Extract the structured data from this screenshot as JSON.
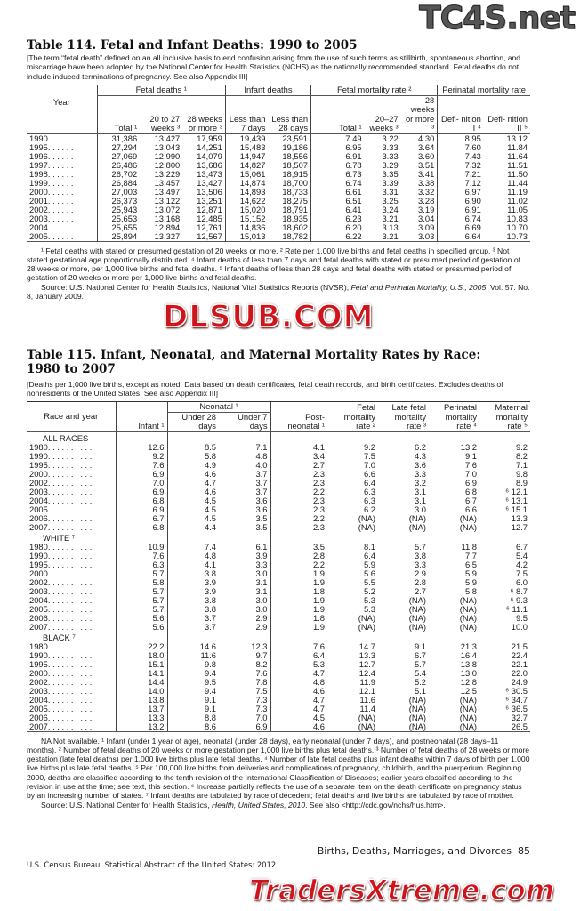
{
  "watermarks": {
    "top": "TC4S.net",
    "middle": "DLSUB.COM",
    "bottom": "TradersXtreme.com"
  },
  "t114": {
    "title": "Table 114. Fetal and Infant Deaths: 1990 to 2005",
    "note": "[The term “fetal death” defined on an all inclusive basis to end confusion arising from the use of such terms as stillbirth, spontaneous abortion, and miscarriage have been adopted by the National Center for Health Statistics (NCHS) as the nationally recommended standard. Fetal deaths do not include induced terminations of pregnancy. See also Appendix III]",
    "headers": {
      "year": "Year",
      "fetal_deaths": "Fetal deaths ¹",
      "infant_deaths": "Infant deaths",
      "fetal_rate": "Fetal mortality rate ²",
      "perinatal": "Perinatal mortality rate",
      "cols": [
        "Total ¹",
        "20 to 27 weeks ³",
        "28 weeks or more ³",
        "Less than 7 days",
        "Less than 28 days",
        "Total ¹",
        "20–27 weeks ³",
        "28 weeks or more ³",
        "Defi- nition I ⁴",
        "Defi- nition II ⁵"
      ]
    },
    "rows": [
      [
        "1990",
        "31,386",
        "13,427",
        "17,959",
        "19,439",
        "23,591",
        "7.49",
        "3.22",
        "4.30",
        "8.95",
        "13.12"
      ],
      [
        "1995",
        "27,294",
        "13,043",
        "14,251",
        "15,483",
        "19,186",
        "6.95",
        "3.33",
        "3.64",
        "7.60",
        "11.84"
      ],
      [
        "1996",
        "27,069",
        "12,990",
        "14,079",
        "14,947",
        "18,556",
        "6.91",
        "3.33",
        "3.60",
        "7.43",
        "11.64"
      ],
      [
        "1997",
        "26,486",
        "12,800",
        "13,686",
        "14,827",
        "18,507",
        "6.78",
        "3.29",
        "3.51",
        "7.32",
        "11.51"
      ],
      [
        "1998",
        "26,702",
        "13,229",
        "13,473",
        "15,061",
        "18,915",
        "6.73",
        "3.35",
        "3.41",
        "7.21",
        "11.50"
      ],
      [
        "1999",
        "26,884",
        "13,457",
        "13,427",
        "14,874",
        "18,700",
        "6.74",
        "3.39",
        "3.38",
        "7.12",
        "11.44"
      ],
      [
        "2000",
        "27,003",
        "13,497",
        "13,506",
        "14,893",
        "18,733",
        "6.61",
        "3.31",
        "3.32",
        "6.97",
        "11.19"
      ],
      [
        "2001",
        "26,373",
        "13,122",
        "13,251",
        "14,622",
        "18,275",
        "6.51",
        "3.25",
        "3.28",
        "6.90",
        "11.02"
      ],
      [
        "2002",
        "25,943",
        "13,072",
        "12,871",
        "15,020",
        "18,791",
        "6.41",
        "3.24",
        "3.19",
        "6.91",
        "11.05"
      ],
      [
        "2003",
        "25,653",
        "13,168",
        "12,485",
        "15,152",
        "18,935",
        "6.23",
        "3.21",
        "3.04",
        "6.74",
        "10.83"
      ],
      [
        "2004",
        "25,655",
        "12,894",
        "12,761",
        "14,836",
        "18,602",
        "6.20",
        "3.13",
        "3.09",
        "6.69",
        "10.70"
      ],
      [
        "2005",
        "25,894",
        "13,327",
        "12,567",
        "15,013",
        "18,782",
        "6.22",
        "3.21",
        "3.03",
        "6.64",
        "10.73"
      ]
    ],
    "footnotes": "¹ Fetal deaths with stated or presumed gestation of 20 weeks or more. ² Rate per 1,000 live births and fetal deaths in specified group. ³ Not stated gestational age proportionally distributed. ⁴ Infant deaths of less than 7 days and fetal deaths with stated or presumed period of gestation of 28 weeks or more, per 1,000 live births and fetal deaths. ⁵ Infant deaths of less than 28 days and fetal deaths with stated or presumed period of gestation of 20 weeks or more per 1,000 live births and fetal deaths.",
    "source_prefix": "Source: U.S. National Center for Health Statistics, National Vital Statistics Reports (NVSR), ",
    "source_italic": "Fetal and Perinatal Mortality, U.S., 2005",
    "source_suffix": ", Vol. 57. No. 8, January 2009."
  },
  "t115": {
    "title_line1": "Table 115. Infant, Neonatal, and Maternal Mortality Rates by Race:",
    "title_line2": "1980 to 2007",
    "note": "[Deaths per 1,000 live births, except as noted. Data based on death certificates, fetal death records, and birth certificates. Excludes deaths of nonresidents of the United States. See also Appendix III]",
    "headers": {
      "race_year": "Race and year",
      "neonatal": "Neonatal ¹",
      "cols": [
        "Infant ¹",
        "Under 28 days",
        "Under 7 days",
        "Post- neonatal ¹",
        "Fetal mortality rate ²",
        "Late fetal mortality rate ³",
        "Perinatal mortality rate ⁴",
        "Maternal mortality rate ⁵"
      ]
    },
    "groups": [
      {
        "label": "ALL RACES",
        "rows": [
          [
            "1980",
            "12.6",
            "8.5",
            "7.1",
            "4.1",
            "9.2",
            "6.2",
            "13.2",
            "9.2"
          ],
          [
            "1990",
            "9.2",
            "5.8",
            "4.8",
            "3.4",
            "7.5",
            "4.3",
            "9.1",
            "8.2"
          ],
          [
            "1995",
            "7.6",
            "4.9",
            "4.0",
            "2.7",
            "7.0",
            "3.6",
            "7.6",
            "7.1"
          ],
          [
            "2000",
            "6.9",
            "4.6",
            "3.7",
            "2.3",
            "6.6",
            "3.3",
            "7.0",
            "9.8"
          ],
          [
            "2002",
            "7.0",
            "4.7",
            "3.7",
            "2.3",
            "6.4",
            "3.2",
            "6.9",
            "8.9"
          ],
          [
            "2003",
            "6.9",
            "4.6",
            "3.7",
            "2.2",
            "6.3",
            "3.1",
            "6.8",
            "⁶ 12.1"
          ],
          [
            "2004",
            "6.8",
            "4.5",
            "3.6",
            "2.3",
            "6.3",
            "3.1",
            "6.7",
            "⁶ 13.1"
          ],
          [
            "2005",
            "6.9",
            "4.5",
            "3.6",
            "2.3",
            "6.2",
            "3.0",
            "6.6",
            "⁶ 15.1"
          ],
          [
            "2006",
            "6.7",
            "4.5",
            "3.5",
            "2.2",
            "(NA)",
            "(NA)",
            "(NA)",
            "13.3"
          ],
          [
            "2007",
            "6.8",
            "4.4",
            "3.5",
            "2.3",
            "(NA)",
            "(NA)",
            "(NA)",
            "12.7"
          ]
        ]
      },
      {
        "label": "WHITE ⁷",
        "rows": [
          [
            "1980",
            "10.9",
            "7.4",
            "6.1",
            "3.5",
            "8.1",
            "5.7",
            "11.8",
            "6.7"
          ],
          [
            "1990",
            "7.6",
            "4.8",
            "3.9",
            "2.8",
            "6.4",
            "3.8",
            "7.7",
            "5.4"
          ],
          [
            "1995",
            "6.3",
            "4.1",
            "3.3",
            "2.2",
            "5.9",
            "3.3",
            "6.5",
            "4.2"
          ],
          [
            "2000",
            "5.7",
            "3.8",
            "3.0",
            "1.9",
            "5.6",
            "2.9",
            "5.9",
            "7.5"
          ],
          [
            "2002",
            "5.8",
            "3.9",
            "3.1",
            "1.9",
            "5.5",
            "2.8",
            "5.9",
            "6.0"
          ],
          [
            "2003",
            "5.7",
            "3.9",
            "3.1",
            "1.8",
            "5.2",
            "2.7",
            "5.8",
            "⁶ 8.7"
          ],
          [
            "2004",
            "5.7",
            "3.8",
            "3.0",
            "1.9",
            "5.3",
            "(NA)",
            "(NA)",
            "⁶ 9.3"
          ],
          [
            "2005",
            "5.7",
            "3.8",
            "3.0",
            "1.9",
            "5.3",
            "(NA)",
            "(NA)",
            "⁶ 11.1"
          ],
          [
            "2006",
            "5.6",
            "3.7",
            "2.9",
            "1.8",
            "(NA)",
            "(NA)",
            "(NA)",
            "9.5"
          ],
          [
            "2007",
            "5.6",
            "3.7",
            "2.9",
            "1.9",
            "(NA)",
            "(NA)",
            "(NA)",
            "10.0"
          ]
        ]
      },
      {
        "label": "BLACK ⁷",
        "rows": [
          [
            "1980",
            "22.2",
            "14.6",
            "12.3",
            "7.6",
            "14.7",
            "9.1",
            "21.3",
            "21.5"
          ],
          [
            "1990",
            "18.0",
            "11.6",
            "9.7",
            "6.4",
            "13.3",
            "6.7",
            "16.4",
            "22.4"
          ],
          [
            "1995",
            "15.1",
            "9.8",
            "8.2",
            "5.3",
            "12.7",
            "5.7",
            "13.8",
            "22.1"
          ],
          [
            "2000",
            "14.1",
            "9.4",
            "7.6",
            "4.7",
            "12.4",
            "5.4",
            "13.0",
            "22.0"
          ],
          [
            "2002",
            "14.4",
            "9.5",
            "7.8",
            "4.8",
            "11.9",
            "5.2",
            "12.8",
            "24.9"
          ],
          [
            "2003",
            "14.0",
            "9.4",
            "7.5",
            "4.6",
            "12.1",
            "5.1",
            "12.5",
            "⁶ 30.5"
          ],
          [
            "2004",
            "13.8",
            "9.1",
            "7.3",
            "4.7",
            "11.6",
            "(NA)",
            "(NA)",
            "⁶ 34.7"
          ],
          [
            "2005",
            "13.7",
            "9.1",
            "7.3",
            "4.7",
            "11.4",
            "(NA)",
            "(NA)",
            "⁶ 36.5"
          ],
          [
            "2006",
            "13.3",
            "8.8",
            "7.0",
            "4.5",
            "(NA)",
            "(NA)",
            "(NA)",
            "32.7"
          ],
          [
            "2007",
            "13.2",
            "8.6",
            "6.9",
            "4.6",
            "(NA)",
            "(NA)",
            "(NA)",
            "26.5"
          ]
        ]
      }
    ],
    "footnotes": "NA Not available. ¹ Infant (under 1 year of age), neonatal (under 28 days), early neonatal (under 7 days), and postneonatal (28 days–11 months). ² Number of fetal deaths of 20 weeks or more gestation per 1,000 live births plus fetal deaths. ³ Number of fetal deaths of 28 weeks or more gestation (late fetal deaths) per 1,000 live births plus late fetal deaths. ⁴ Number of late fetal deaths plus infant deaths within 7 days of birth per 1,000 live births plus late fetal deaths. ⁵ Per 100,000 live births from deliveries and complications of pregnancy, childbirth, and the puerperium. Beginning 2000, deaths are classified according to the tenth revision of the International Classification of Diseases; earlier years classified according to the revision in use at the time; see text, this section. ⁶ Increase partially reflects the use of a separate item on the death certificate on pregnancy status by an increasing number of states. ⁷ Infant deaths are tabulated by race of decedent; fetal deaths and live births are tabulated by race of mother.",
    "source_prefix": "Source: U.S. National Center for Health Statistics, ",
    "source_italic": "Health, United States, 2010",
    "source_suffix": ". See also <http://cdc.gov/nchs/hus.htm>."
  },
  "footer": {
    "section": "Births, Deaths, Marriages, and Divorces",
    "page": "85",
    "publisher": "U.S. Census Bureau, Statistical Abstract of the United States: 2012"
  }
}
